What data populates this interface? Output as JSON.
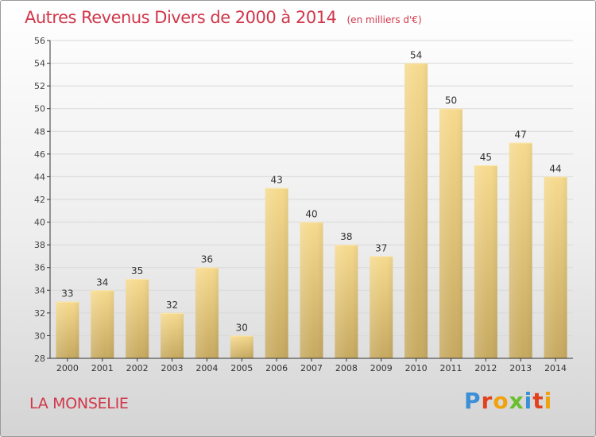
{
  "header": {
    "title": "Autres Revenus Divers de 2000 à 2014",
    "subtitle": "(en milliers d'€)"
  },
  "footer": {
    "commune": "LA MONSELIE",
    "brand": "Proxiti"
  },
  "colors": {
    "title": "#d1374a",
    "bar_top": "#f6da8e",
    "bar_bottom": "#c6a960",
    "axis": "#333333",
    "grid": "#d8d8d8",
    "brand_letters": [
      "#3a8fd6",
      "#e0421f",
      "#f0a20c",
      "#6abf2c",
      "#3a8fd6",
      "#e0421f",
      "#f0a20c"
    ]
  },
  "chart_data": {
    "type": "bar",
    "categories": [
      "2000",
      "2001",
      "2002",
      "2003",
      "2004",
      "2005",
      "2006",
      "2007",
      "2008",
      "2009",
      "2010",
      "2011",
      "2012",
      "2013",
      "2014"
    ],
    "values": [
      33,
      34,
      35,
      32,
      36,
      30,
      43,
      40,
      38,
      37,
      54,
      50,
      45,
      47,
      44
    ],
    "ylim": [
      28,
      56
    ],
    "yticks": [
      28,
      30,
      32,
      34,
      36,
      38,
      40,
      42,
      44,
      46,
      48,
      50,
      52,
      54,
      56
    ],
    "title": "Autres Revenus Divers de 2000 à 2014",
    "xlabel": "",
    "ylabel": "",
    "grid": true,
    "data_labels": true
  }
}
